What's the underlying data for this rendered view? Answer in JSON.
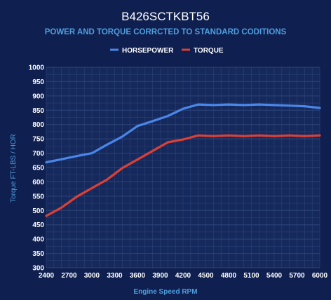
{
  "colors": {
    "background": "#0f1f4f",
    "plot_background": "#16295c",
    "grid": "#2e4478",
    "title": "#ffffff",
    "subtitle": "#4f9fe0",
    "axis_label": "#4f9fe0",
    "tick": "#ffffff",
    "horsepower": "#4a86e8",
    "torque": "#dc4035"
  },
  "chart_data": {
    "type": "line",
    "title": "B426SCTKBT56",
    "subtitle": "POWER AND TORQUE CORRCTED TO STANDARD CODITIONS",
    "xlabel": "Engine Speed RPM",
    "ylabel": "Torque FT-LBS / HOR",
    "xlim": [
      2400,
      6000
    ],
    "ylim": [
      300,
      1000
    ],
    "xticks": [
      2400,
      2700,
      3000,
      3300,
      3600,
      3900,
      4200,
      4500,
      4800,
      5100,
      5400,
      5700,
      6000
    ],
    "yticks": [
      300,
      350,
      400,
      450,
      500,
      550,
      600,
      650,
      700,
      750,
      800,
      850,
      900,
      950,
      1000
    ],
    "grid": true,
    "legend_position": "top-center",
    "series": [
      {
        "name": "HORSEPOWER",
        "color": "#4a86e8",
        "x": [
          2400,
          2600,
          2800,
          3000,
          3200,
          3400,
          3600,
          3800,
          4000,
          4200,
          4400,
          4600,
          4800,
          5000,
          5200,
          5400,
          5600,
          5800,
          6000
        ],
        "y": [
          668,
          679,
          690,
          700,
          730,
          758,
          795,
          812,
          830,
          855,
          870,
          868,
          870,
          868,
          870,
          868,
          866,
          864,
          858
        ]
      },
      {
        "name": "TORQUE",
        "color": "#dc4035",
        "x": [
          2400,
          2600,
          2800,
          3000,
          3200,
          3400,
          3600,
          3800,
          4000,
          4200,
          4400,
          4600,
          4800,
          5000,
          5200,
          5400,
          5600,
          5800,
          6000
        ],
        "y": [
          481,
          510,
          548,
          578,
          608,
          648,
          678,
          708,
          738,
          748,
          762,
          760,
          762,
          760,
          762,
          760,
          762,
          760,
          762
        ]
      }
    ]
  }
}
